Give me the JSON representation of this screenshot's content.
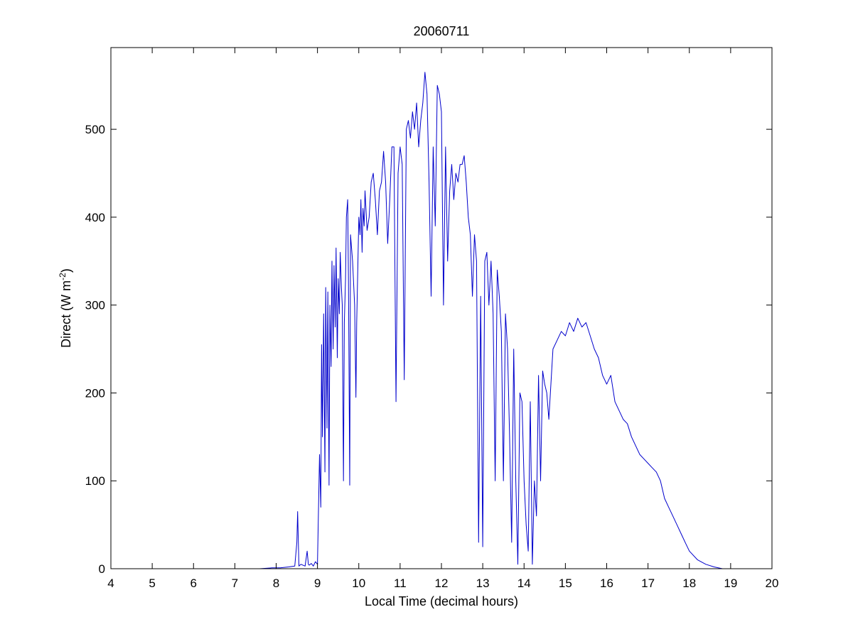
{
  "chart_data": {
    "type": "line",
    "title": "20060711",
    "xlabel": "Local Time (decimal hours)",
    "ylabel_main": "Direct (W m",
    "ylabel_sup": "-2",
    "ylabel_close": ")",
    "xlim": [
      4,
      20
    ],
    "ylim": [
      0,
      593
    ],
    "xticks": [
      4,
      5,
      6,
      7,
      8,
      9,
      10,
      11,
      12,
      13,
      14,
      15,
      16,
      17,
      18,
      19,
      20
    ],
    "yticks": [
      0,
      100,
      200,
      300,
      400,
      500
    ],
    "grid": false,
    "line_color": "#0000cc",
    "series": [
      {
        "x": [
          5.25,
          6.0,
          7.0,
          7.6,
          7.9,
          8.1,
          8.3,
          8.45,
          8.5,
          8.52,
          8.55,
          8.6,
          8.7,
          8.75,
          8.78,
          8.8,
          8.85,
          8.9,
          8.95,
          9.0,
          9.05,
          9.08,
          9.1,
          9.12,
          9.15,
          9.18,
          9.2,
          9.23,
          9.25,
          9.28,
          9.3,
          9.33,
          9.35,
          9.38,
          9.4,
          9.43,
          9.45,
          9.48,
          9.5,
          9.53,
          9.55,
          9.58,
          9.6,
          9.63,
          9.65,
          9.68,
          9.7,
          9.73,
          9.75,
          9.78,
          9.8,
          9.85,
          9.9,
          9.93,
          9.95,
          10.0,
          10.03,
          10.05,
          10.08,
          10.1,
          10.13,
          10.15,
          10.2,
          10.25,
          10.3,
          10.35,
          10.4,
          10.45,
          10.5,
          10.55,
          10.6,
          10.65,
          10.7,
          10.75,
          10.8,
          10.85,
          10.9,
          10.95,
          11.0,
          11.05,
          11.1,
          11.15,
          11.2,
          11.25,
          11.3,
          11.35,
          11.4,
          11.45,
          11.5,
          11.55,
          11.6,
          11.65,
          11.7,
          11.75,
          11.8,
          11.85,
          11.9,
          11.95,
          12.0,
          12.05,
          12.1,
          12.15,
          12.2,
          12.25,
          12.3,
          12.35,
          12.4,
          12.45,
          12.5,
          12.55,
          12.6,
          12.65,
          12.7,
          12.75,
          12.8,
          12.85,
          12.9,
          12.95,
          13.0,
          13.05,
          13.1,
          13.15,
          13.2,
          13.25,
          13.3,
          13.35,
          13.4,
          13.45,
          13.5,
          13.55,
          13.6,
          13.65,
          13.7,
          13.75,
          13.8,
          13.85,
          13.9,
          13.95,
          14.0,
          14.05,
          14.1,
          14.15,
          14.2,
          14.25,
          14.3,
          14.35,
          14.4,
          14.45,
          14.5,
          14.55,
          14.6,
          14.7,
          14.8,
          14.9,
          15.0,
          15.1,
          15.2,
          15.3,
          15.4,
          15.5,
          15.6,
          15.7,
          15.8,
          15.9,
          16.0,
          16.1,
          16.2,
          16.3,
          16.4,
          16.5,
          16.6,
          16.7,
          16.8,
          16.9,
          17.0,
          17.1,
          17.2,
          17.3,
          17.4,
          17.5,
          17.6,
          17.7,
          17.8,
          17.9,
          18.0,
          18.2,
          18.4,
          18.6,
          18.8,
          19.0,
          19.2,
          19.3
        ],
        "y": [
          0,
          0,
          0,
          0,
          1,
          1,
          2,
          3,
          30,
          65,
          3,
          5,
          3,
          20,
          5,
          4,
          6,
          3,
          8,
          5,
          130,
          70,
          255,
          150,
          290,
          110,
          320,
          160,
          315,
          95,
          300,
          230,
          350,
          250,
          345,
          275,
          365,
          240,
          330,
          290,
          360,
          320,
          300,
          100,
          280,
          330,
          400,
          420,
          330,
          95,
          380,
          350,
          300,
          195,
          280,
          400,
          380,
          420,
          360,
          410,
          390,
          430,
          385,
          400,
          440,
          450,
          420,
          380,
          430,
          440,
          475,
          440,
          370,
          420,
          480,
          480,
          190,
          450,
          480,
          460,
          215,
          500,
          510,
          490,
          520,
          500,
          530,
          480,
          510,
          530,
          565,
          540,
          440,
          310,
          480,
          390,
          550,
          540,
          520,
          300,
          480,
          350,
          430,
          460,
          420,
          450,
          440,
          460,
          460,
          470,
          440,
          400,
          380,
          310,
          380,
          350,
          30,
          310,
          25,
          350,
          360,
          300,
          350,
          290,
          100,
          340,
          310,
          270,
          100,
          290,
          250,
          150,
          30,
          250,
          100,
          5,
          200,
          190,
          100,
          50,
          20,
          190,
          5,
          100,
          60,
          220,
          100,
          225,
          210,
          200,
          170,
          250,
          260,
          270,
          265,
          280,
          270,
          285,
          275,
          280,
          265,
          250,
          240,
          220,
          210,
          220,
          190,
          180,
          170,
          165,
          150,
          140,
          130,
          125,
          120,
          115,
          110,
          100,
          80,
          70,
          60,
          50,
          40,
          30,
          20,
          10,
          5,
          2,
          0,
          0,
          0,
          0
        ]
      }
    ]
  }
}
